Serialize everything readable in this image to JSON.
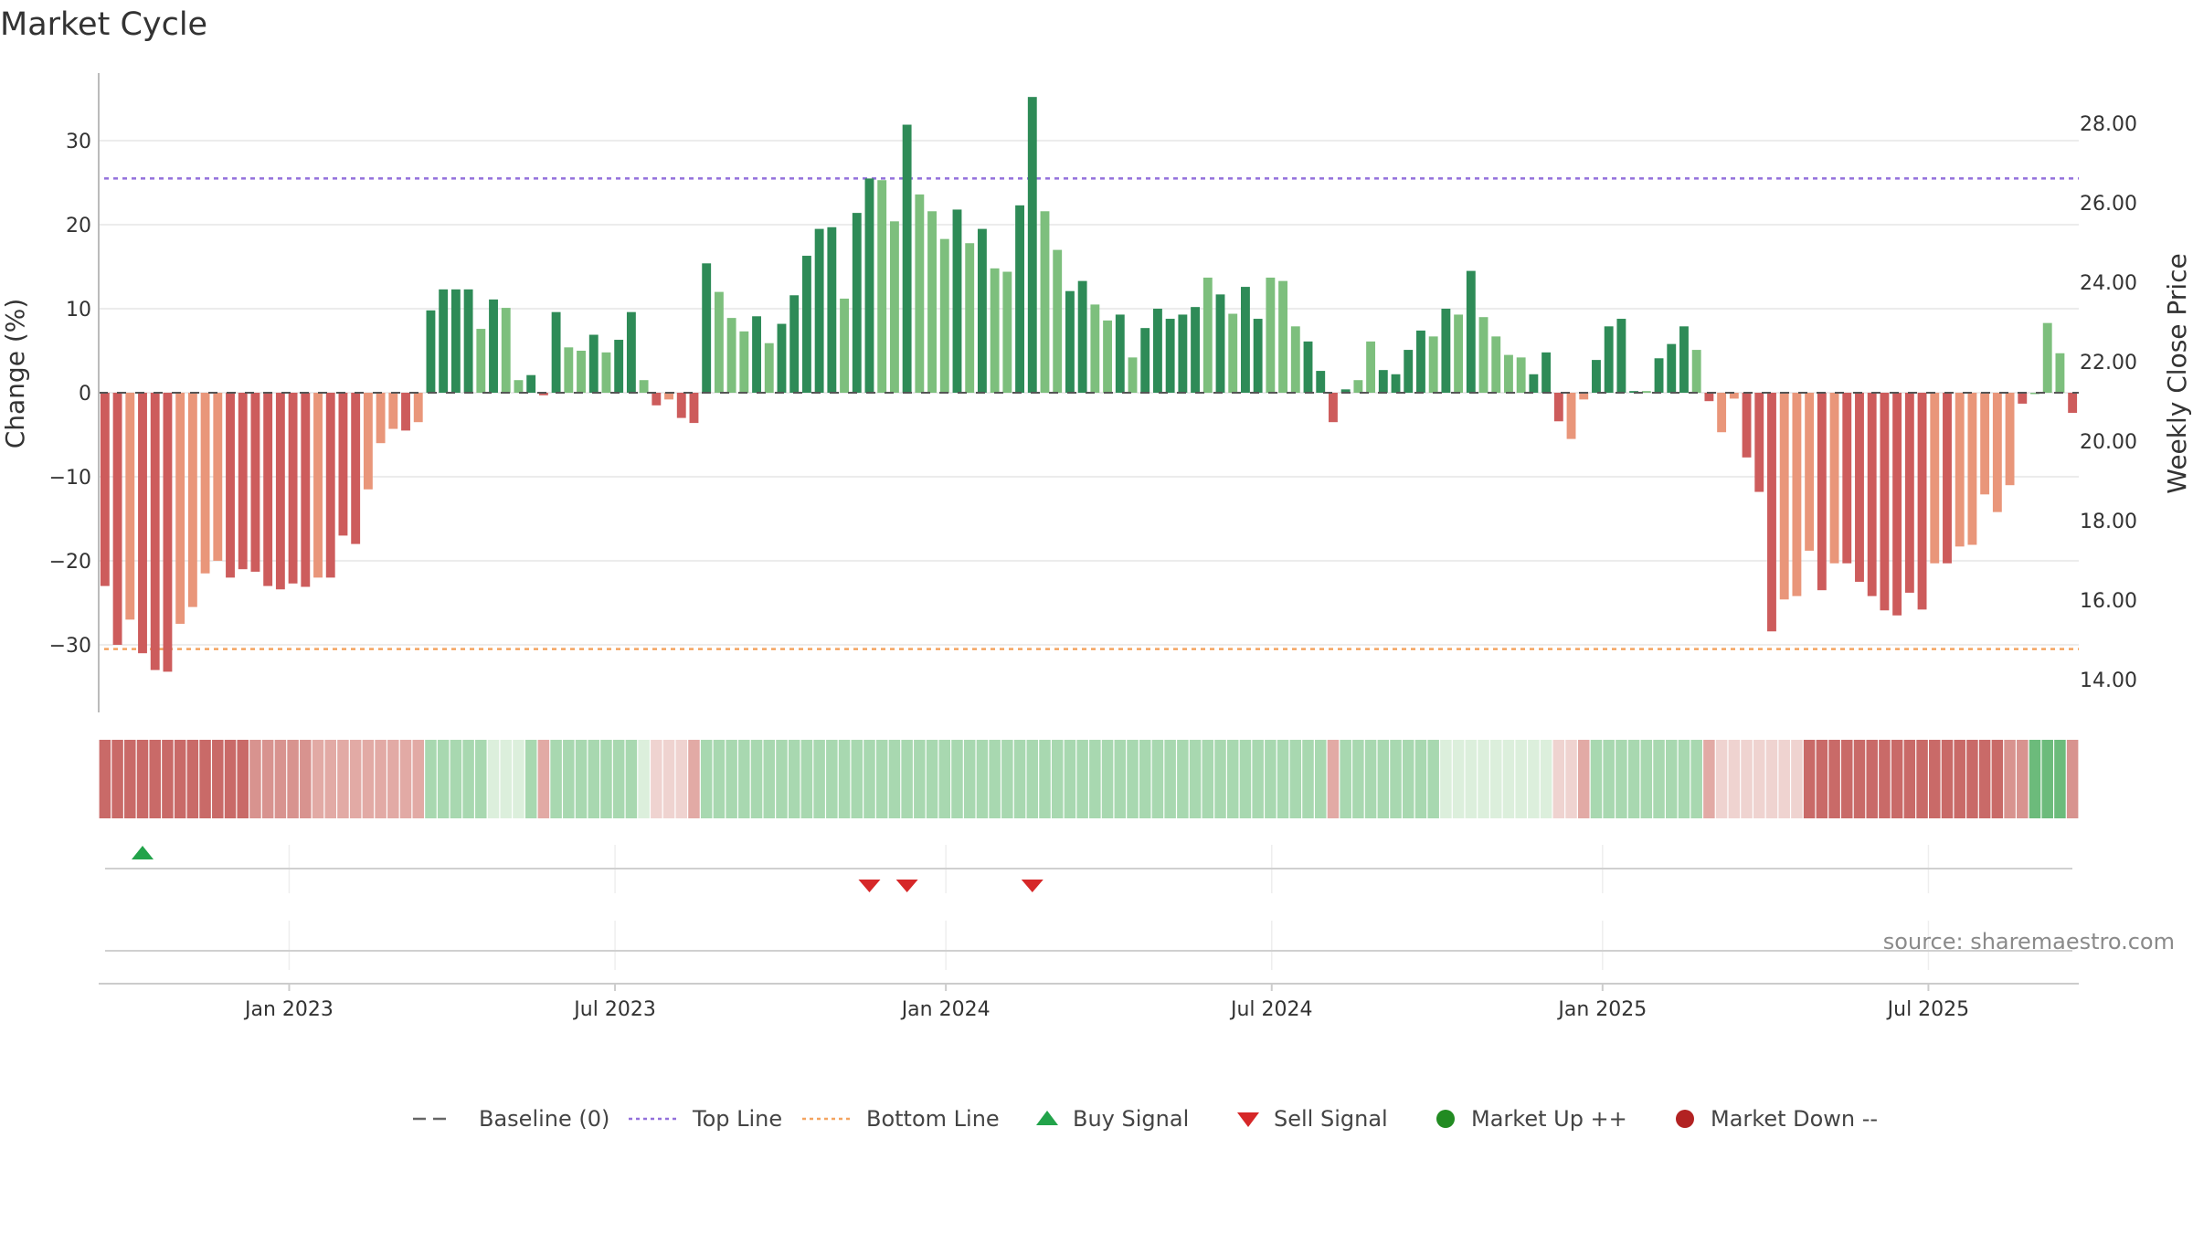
{
  "chart_data": {
    "type": "bar",
    "title": "Market Cycle",
    "ylabel": "Change (%)",
    "y2label": "Weekly Close Price",
    "ylim": [
      -38,
      38
    ],
    "y_ticks": [
      30,
      20,
      10,
      0,
      -10,
      -20,
      -30
    ],
    "y2lim": [
      13.0,
      29.5
    ],
    "y2_ticks": [
      "28.00",
      "26.00",
      "24.00",
      "22.00",
      "20.00",
      "18.00",
      "16.00",
      "14.00"
    ],
    "x_ticks": [
      "Jan 2023",
      "Jul 2023",
      "Jan 2024",
      "Jul 2024",
      "Jan 2025",
      "Jul 2025"
    ],
    "x_tick_positions": [
      15.2,
      41.2,
      67.6,
      93.6,
      120.0,
      146.0
    ],
    "top_line": 25.5,
    "bottom_line": -30.5,
    "baseline": 0,
    "grid": true,
    "legend_position": "bottom-center",
    "colors": {
      "strong_up": "#2e8b57",
      "weak_up": "#7dbf7d",
      "strong_down": "#cd5c5c",
      "weak_down": "#e9967a",
      "top_line": "#9370db",
      "bottom_line": "#f4a460",
      "buy": "#22a34a",
      "sell": "#d62728",
      "market_up": "#228b22",
      "market_down": "#b22222"
    },
    "series": [
      {
        "values": [
          -23,
          -30,
          -27,
          -31,
          -33,
          -33.2,
          -27.5,
          -25.5,
          -21.5,
          -20,
          -22,
          -21,
          -21.3,
          -23,
          -23.4,
          -22.7,
          -23.1,
          -22,
          -22,
          -17,
          -18,
          -11.5,
          -6,
          -4.3,
          -4.5,
          -3.5,
          9.8,
          12.3,
          12.3,
          12.3,
          7.6,
          11.1,
          10.1,
          1.5,
          2.1,
          -0.3,
          9.6,
          5.4,
          5,
          6.9,
          4.8,
          6.3,
          9.6,
          1.5,
          -1.5,
          -0.8,
          -3,
          -3.6,
          15.4,
          12,
          8.9,
          7.3,
          9.1,
          5.9,
          8.2,
          11.6,
          16.3,
          19.5,
          19.7,
          11.2,
          21.4,
          25.5,
          25.3,
          20.4,
          31.9,
          23.6,
          21.6,
          18.3,
          21.8,
          17.8,
          19.5,
          14.8,
          14.4,
          22.3,
          35.2,
          21.6,
          17,
          12.1,
          13.3,
          10.5,
          8.6,
          9.3,
          4.2,
          7.7,
          10,
          8.8,
          9.3,
          10.2,
          13.7,
          11.7,
          9.4,
          12.6,
          8.8,
          13.7,
          13.3,
          7.9,
          6.1,
          2.6,
          -3.5,
          0.4,
          1.5,
          6.1,
          2.7,
          2.2,
          5.1,
          7.4,
          6.7,
          10,
          9.3,
          14.5,
          9,
          6.7,
          4.5,
          4.2,
          2.2,
          4.8,
          -3.4,
          -5.5,
          -0.8,
          3.9,
          7.9,
          8.8,
          0.2,
          0.2,
          4.1,
          5.8,
          7.9,
          5.1,
          -1,
          -4.7,
          -0.7,
          -7.7,
          -11.8,
          -28.4,
          -24.6,
          -24.2,
          -18.8,
          -23.5,
          -20.3,
          -20.3,
          -22.5,
          -24.2,
          -25.9,
          -26.5,
          -23.8,
          -25.8,
          -20.3,
          -20.3,
          -18.3,
          -18.1,
          -12.1,
          -14.2,
          -11,
          -1.3,
          0,
          8.3,
          4.7,
          -2.4
        ],
        "strength": "SSWSSSWWWWSSSSSSSWSSSWWWSWSSSSWSWWSSSWWSWSSWSWSSSWWWSWSSSSSWSSWWSWWWSWSWWSSWWSSWWSWSSSSSWSWSSWWWSSSSWWSSSSWSWSWWWWSSSWWSSSSWSSSWSWWSSSWWWSWSSSSSSSWSWWWWWSWWWSSWS"
      }
    ],
    "heat_strip": "4444444444443333322222222222222111222222222111122222222222222222222222222222222222222222222222222222222222211111111111222222222221111111444444444444444433333311",
    "buy_signals": [
      3
    ],
    "sell_signals": [
      61,
      64,
      74
    ],
    "market_up": [],
    "market_down": [],
    "source": "source: sharemaestro.com",
    "legend": [
      {
        "label": "Baseline (0)",
        "symbol": "dash",
        "color": "#666666"
      },
      {
        "label": "Top Line",
        "symbol": "dotted",
        "color": "#9370db"
      },
      {
        "label": "Bottom Line",
        "symbol": "dotted",
        "color": "#f4a460"
      },
      {
        "label": "Buy Signal",
        "symbol": "triangle-up",
        "color": "#22a34a"
      },
      {
        "label": "Sell Signal",
        "symbol": "triangle-down",
        "color": "#d62728"
      },
      {
        "label": "Market Up ++",
        "symbol": "circle",
        "color": "#228b22"
      },
      {
        "label": "Market Down --",
        "symbol": "circle",
        "color": "#b22222"
      }
    ]
  }
}
